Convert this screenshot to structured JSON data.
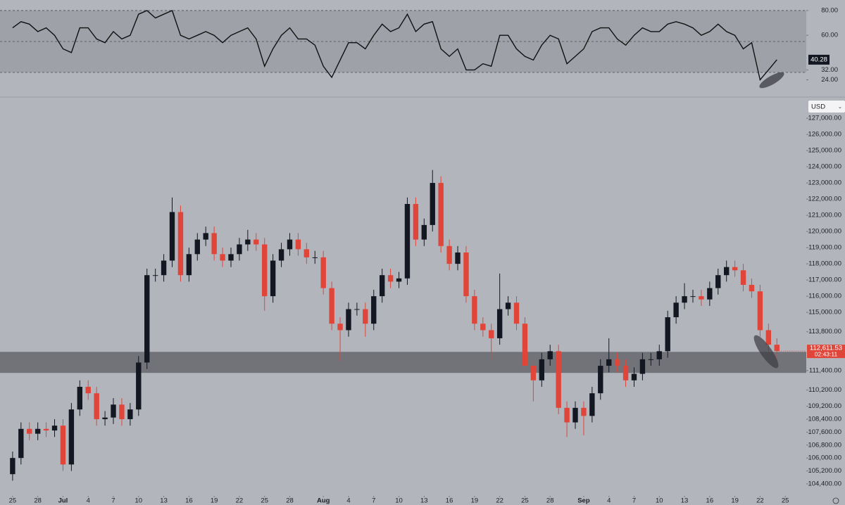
{
  "chart_data": [
    {
      "type": "line",
      "color": "#111111",
      "values": [
        66,
        71,
        69,
        63,
        66,
        60,
        49,
        46,
        66,
        66,
        57,
        54,
        63,
        57,
        60,
        77,
        80,
        74,
        77,
        80,
        60,
        57,
        60,
        63,
        60,
        54,
        60,
        63,
        66,
        57,
        35,
        49,
        60,
        66,
        57,
        57,
        52,
        35,
        26,
        40,
        54,
        54,
        49,
        60,
        69,
        63,
        66,
        77,
        63,
        69,
        71,
        49,
        43,
        49,
        32,
        32,
        37,
        35,
        60,
        60,
        49,
        43,
        40,
        52,
        60,
        57,
        37,
        43,
        49,
        63,
        66,
        66,
        57,
        52,
        60,
        66,
        63,
        63,
        69,
        71,
        69,
        66,
        60,
        63,
        69,
        63,
        60,
        49,
        54,
        24,
        32,
        40.28
      ],
      "ylim": [
        11.8,
        88.5
      ],
      "yticks": [
        {
          "value": 80,
          "label": "80.00"
        },
        {
          "value": 60,
          "label": "60.00"
        },
        {
          "value": 32,
          "label": "32.00"
        },
        {
          "value": 24,
          "label": "24.00"
        }
      ],
      "levels": [
        80,
        55,
        30
      ],
      "band": [
        30,
        80
      ],
      "last_label": "40.28"
    },
    {
      "type": "candlestick",
      "up_color": "#131722",
      "down_color": "#e0453a",
      "currency": "USD",
      "open": [
        105000,
        106000,
        107800,
        107500,
        107800,
        107700,
        108000,
        105600,
        109000,
        110400,
        110000,
        108400,
        108500,
        109300,
        108400,
        109000,
        111900,
        117300,
        117300,
        118200,
        121200,
        117300,
        118600,
        119500,
        119900,
        118600,
        118200,
        118600,
        119200,
        119500,
        119200,
        116000,
        118200,
        118900,
        119500,
        118900,
        118400,
        118400,
        116500,
        114300,
        113900,
        115200,
        115200,
        114300,
        116000,
        117300,
        116900,
        117100,
        121700,
        119500,
        120400,
        123000,
        119100,
        118000,
        118700,
        116000,
        114300,
        113900,
        113400,
        115200,
        115600,
        114300,
        111700,
        110800,
        112100,
        112600,
        109100,
        108200,
        109100,
        108600,
        110000,
        111700,
        112100,
        111700,
        110800,
        111200,
        112100,
        112100,
        112600,
        114700,
        115600,
        116000,
        116000,
        115800,
        116500,
        117300,
        117800,
        117600,
        116700,
        116300,
        113900,
        113000
      ],
      "high": [
        106400,
        108200,
        108200,
        108200,
        108200,
        108400,
        108400,
        109400,
        110800,
        110800,
        110400,
        108900,
        109700,
        109700,
        109400,
        112300,
        117700,
        117700,
        118600,
        122100,
        121600,
        119000,
        119900,
        120300,
        120300,
        119000,
        119000,
        119600,
        120100,
        119900,
        119600,
        118600,
        119300,
        119900,
        119900,
        119300,
        118800,
        118800,
        116900,
        114700,
        115600,
        115600,
        115600,
        116400,
        117700,
        117700,
        117500,
        122100,
        122100,
        120800,
        123800,
        123400,
        119500,
        119100,
        119100,
        116400,
        114700,
        114300,
        117400,
        116000,
        116000,
        114700,
        112100,
        112500,
        113000,
        113000,
        109500,
        109500,
        109500,
        110400,
        112100,
        113400,
        112500,
        112100,
        111600,
        112500,
        112500,
        113000,
        115100,
        116000,
        116800,
        116400,
        116400,
        116900,
        117700,
        118200,
        118200,
        118000,
        117100,
        116700,
        114300,
        113400
      ],
      "low": [
        104600,
        105600,
        107100,
        107100,
        107300,
        107300,
        105200,
        105200,
        108600,
        109600,
        108000,
        108000,
        108100,
        108000,
        108000,
        108600,
        111500,
        116900,
        116900,
        117800,
        116900,
        116900,
        118200,
        119100,
        118200,
        117800,
        117800,
        118200,
        118800,
        118800,
        115100,
        115600,
        117800,
        118500,
        118500,
        118000,
        118000,
        116100,
        113900,
        112000,
        113500,
        114800,
        113500,
        113900,
        115600,
        116500,
        116500,
        116700,
        119100,
        119100,
        120000,
        118700,
        117600,
        117600,
        115600,
        113900,
        113500,
        112000,
        113000,
        114800,
        113900,
        111300,
        109500,
        110400,
        111700,
        108700,
        107300,
        107800,
        107400,
        108200,
        109600,
        111300,
        111300,
        110400,
        110400,
        110800,
        111700,
        111700,
        112200,
        114300,
        115200,
        115600,
        115400,
        115400,
        116100,
        116900,
        117200,
        116300,
        115900,
        113500,
        112600,
        111900
      ],
      "close": [
        106000,
        107800,
        107500,
        107800,
        107700,
        108000,
        105600,
        109000,
        110400,
        110000,
        108400,
        108500,
        109300,
        108400,
        109000,
        111900,
        117300,
        117300,
        118200,
        121200,
        117300,
        118600,
        119500,
        119900,
        118600,
        118200,
        118600,
        119200,
        119500,
        119200,
        116000,
        118200,
        118900,
        119500,
        118900,
        118400,
        118400,
        116500,
        114300,
        113900,
        115200,
        115200,
        114300,
        116000,
        117300,
        116900,
        117100,
        121700,
        119500,
        120400,
        123000,
        119100,
        118000,
        118700,
        116000,
        114300,
        113900,
        113400,
        115200,
        115600,
        114300,
        111700,
        110800,
        112100,
        112600,
        109100,
        108200,
        109100,
        108600,
        110000,
        111700,
        112100,
        111700,
        110800,
        111200,
        112100,
        112100,
        112600,
        114700,
        115600,
        116000,
        116000,
        115800,
        116500,
        117300,
        117800,
        117600,
        116700,
        116300,
        113900,
        113000,
        112611.53
      ],
      "ylim": [
        103660,
        128220
      ],
      "yticks": [
        {
          "value": 127000,
          "label": "127,000.00"
        },
        {
          "value": 126000,
          "label": "126,000.00"
        },
        {
          "value": 125000,
          "label": "125,000.00"
        },
        {
          "value": 124000,
          "label": "124,000.00"
        },
        {
          "value": 123000,
          "label": "123,000.00"
        },
        {
          "value": 122000,
          "label": "122,000.00"
        },
        {
          "value": 121000,
          "label": "121,000.00"
        },
        {
          "value": 120000,
          "label": "120,000.00"
        },
        {
          "value": 119000,
          "label": "119,000.00"
        },
        {
          "value": 118000,
          "label": "118,000.00"
        },
        {
          "value": 117000,
          "label": "117,000.00"
        },
        {
          "value": 116000,
          "label": "116,000.00"
        },
        {
          "value": 115000,
          "label": "115,000.00"
        },
        {
          "value": 113800,
          "label": "113,800.00"
        },
        {
          "value": 111400,
          "label": "111,400.00"
        },
        {
          "value": 110200,
          "label": "110,200.00"
        },
        {
          "value": 109200,
          "label": "109,200.00"
        },
        {
          "value": 108400,
          "label": "108,400.00"
        },
        {
          "value": 107600,
          "label": "107,600.00"
        },
        {
          "value": 106800,
          "label": "106,800.00"
        },
        {
          "value": 106000,
          "label": "106,000.00"
        },
        {
          "value": 105200,
          "label": "105,200.00"
        },
        {
          "value": 104400,
          "label": "104,400.00"
        }
      ],
      "xlim": [
        -1.5,
        94.5
      ],
      "xticks": [
        {
          "value": 0,
          "label": "25"
        },
        {
          "value": 3,
          "label": "28"
        },
        {
          "value": 6,
          "label": "Jul"
        },
        {
          "value": 9,
          "label": "4"
        },
        {
          "value": 12,
          "label": "7"
        },
        {
          "value": 15,
          "label": "10"
        },
        {
          "value": 18,
          "label": "13"
        },
        {
          "value": 21,
          "label": "16"
        },
        {
          "value": 24,
          "label": "19"
        },
        {
          "value": 27,
          "label": "22"
        },
        {
          "value": 30,
          "label": "25"
        },
        {
          "value": 33,
          "label": "28"
        },
        {
          "value": 37,
          "label": "Aug"
        },
        {
          "value": 40,
          "label": "4"
        },
        {
          "value": 43,
          "label": "7"
        },
        {
          "value": 46,
          "label": "10"
        },
        {
          "value": 49,
          "label": "13"
        },
        {
          "value": 52,
          "label": "16"
        },
        {
          "value": 55,
          "label": "19"
        },
        {
          "value": 58,
          "label": "22"
        },
        {
          "value": 61,
          "label": "25"
        },
        {
          "value": 64,
          "label": "28"
        },
        {
          "value": 68,
          "label": "Sep"
        },
        {
          "value": 71,
          "label": "4"
        },
        {
          "value": 74,
          "label": "7"
        },
        {
          "value": 77,
          "label": "10"
        },
        {
          "value": 80,
          "label": "13"
        },
        {
          "value": 83,
          "label": "16"
        },
        {
          "value": 86,
          "label": "19"
        },
        {
          "value": 89,
          "label": "22"
        },
        {
          "value": 92,
          "label": "25"
        }
      ],
      "zone": [
        111260,
        112560
      ],
      "last_label": "112,611.53",
      "countdown": "02:43:11"
    }
  ]
}
